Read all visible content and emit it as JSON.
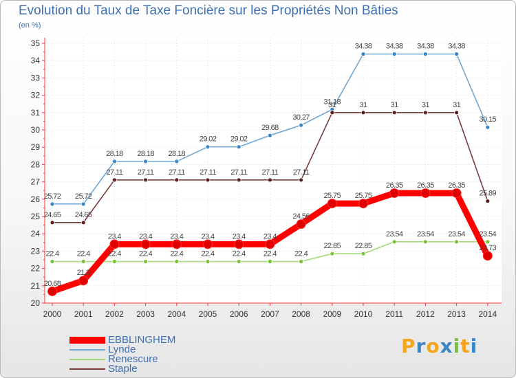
{
  "chart_data": {
    "type": "line",
    "title": "Evolution du Taux de Taxe Foncière sur les Propriétés Non Bâties",
    "ylabel": "(en %)",
    "xlabel": "",
    "ylim": [
      20,
      35
    ],
    "yticks": [
      "20",
      "21",
      "22",
      "23",
      "24",
      "25",
      "26",
      "27",
      "28",
      "29",
      "30",
      "31",
      "32",
      "33",
      "34",
      "35"
    ],
    "x": [
      "2000",
      "2001",
      "2002",
      "2003",
      "2004",
      "2005",
      "2006",
      "2007",
      "2008",
      "2009",
      "2010",
      "2011",
      "2012",
      "2013",
      "2014"
    ],
    "series": [
      {
        "name": "Lynde",
        "color": "#6fa8d6",
        "marker": "#3a86c8",
        "values": [
          25.72,
          25.72,
          28.18,
          28.18,
          28.18,
          29.02,
          29.02,
          29.68,
          30.27,
          31.18,
          34.38,
          34.38,
          34.38,
          34.38,
          30.15
        ],
        "labels": [
          "25.72",
          "25.72",
          "28.18",
          "28.18",
          "28.18",
          "29.02",
          "29.02",
          "29.68",
          "30.27",
          "31.18",
          "34.38",
          "34.38",
          "34.38",
          "34.38",
          "30.15"
        ]
      },
      {
        "name": "Staple",
        "color": "#7b3b3b",
        "marker": "#5a1f1f",
        "values": [
          24.65,
          24.65,
          27.11,
          27.11,
          27.11,
          27.11,
          27.11,
          27.11,
          27.11,
          31,
          31,
          31,
          31,
          31,
          25.89
        ],
        "labels": [
          "24.65",
          "24.65",
          "27.11",
          "27.11",
          "27.11",
          "27.11",
          "27.11",
          "27.11",
          "27.11",
          "31",
          "31",
          "31",
          "31",
          "31",
          "25.89"
        ]
      },
      {
        "name": "Renescure",
        "color": "#a6d87a",
        "marker": "#78c23a",
        "values": [
          22.4,
          22.4,
          22.4,
          22.4,
          22.4,
          22.4,
          22.4,
          22.4,
          22.4,
          22.85,
          22.85,
          23.54,
          23.54,
          23.54,
          23.54
        ],
        "labels": [
          "22.4",
          "22.4",
          "22.4",
          "22.4",
          "22.4",
          "22.4",
          "22.4",
          "22.4",
          "22.4",
          "22.85",
          "22.85",
          "23.54",
          "23.54",
          "23.54",
          "23.54"
        ]
      },
      {
        "name": "EBBLINGHEM",
        "color": "#ff0000",
        "marker": "#e00000",
        "values": [
          20.68,
          21.3,
          23.4,
          23.4,
          23.4,
          23.4,
          23.4,
          23.4,
          24.56,
          25.75,
          25.75,
          26.35,
          26.35,
          26.35,
          22.73
        ],
        "labels": [
          "20.68",
          "21.3",
          "23.4",
          "23.4",
          "23.4",
          "23.4",
          "23.4",
          "23.4",
          "24.56",
          "25.75",
          "25.75",
          "26.35",
          "26.35",
          "26.35",
          "22.73"
        ]
      }
    ],
    "legend": [
      "EBBLINGHEM",
      "Lynde",
      "Renescure",
      "Staple"
    ]
  },
  "logo": {
    "text": [
      "P",
      "r",
      "o",
      "x",
      "i",
      "t",
      "i"
    ],
    "colors": [
      "#f2a51d",
      "#3a86c8",
      "#f2a51d",
      "#3a86c8",
      "#78c23a",
      "#f2a51d",
      "#3a86c8"
    ]
  }
}
